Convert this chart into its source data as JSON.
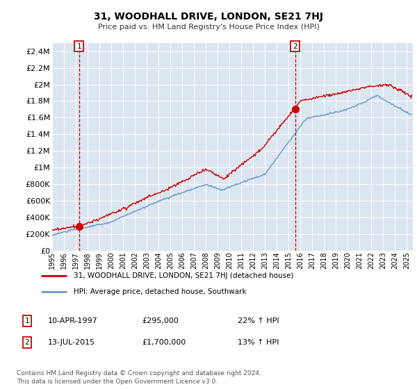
{
  "title": "31, WOODHALL DRIVE, LONDON, SE21 7HJ",
  "subtitle": "Price paid vs. HM Land Registry's House Price Index (HPI)",
  "yticks": [
    0,
    200000,
    400000,
    600000,
    800000,
    1000000,
    1200000,
    1400000,
    1600000,
    1800000,
    2000000,
    2200000,
    2400000
  ],
  "ytick_labels": [
    "£0",
    "£200K",
    "£400K",
    "£600K",
    "£800K",
    "£1M",
    "£1.2M",
    "£1.4M",
    "£1.6M",
    "£1.8M",
    "£2M",
    "£2.2M",
    "£2.4M"
  ],
  "legend_line1": "31, WOODHALL DRIVE, LONDON, SE21 7HJ (detached house)",
  "legend_line2": "HPI: Average price, detached house, Southwark",
  "note1_num": "1",
  "note1_date": "10-APR-1997",
  "note1_price": "£295,000",
  "note1_hpi": "22% ↑ HPI",
  "note2_num": "2",
  "note2_date": "13-JUL-2015",
  "note2_price": "£1,700,000",
  "note2_hpi": "13% ↑ HPI",
  "footer": "Contains HM Land Registry data © Crown copyright and database right 2024.\nThis data is licensed under the Open Government Licence v3.0.",
  "sale1_x": 1997.27,
  "sale1_y": 295000,
  "sale2_x": 2015.54,
  "sale2_y": 1700000,
  "ylim_min": 0,
  "ylim_max": 2500000,
  "xmin": 1995,
  "xmax": 2025.5,
  "line_color_red": "#cc0000",
  "line_color_blue": "#6699cc",
  "dot_color": "#cc0000",
  "vline_color": "#cc0000",
  "plot_bg": "#dce6f0",
  "grid_color": "#ffffff"
}
